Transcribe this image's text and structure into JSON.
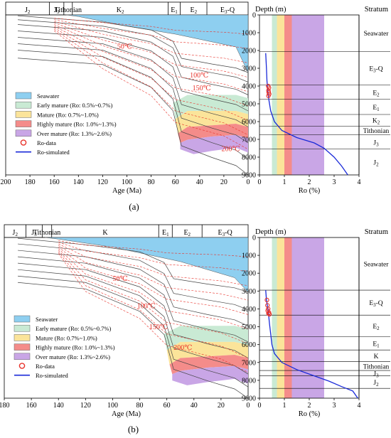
{
  "panels": [
    {
      "label": "(a)",
      "era_labels": [
        "J2",
        "J3",
        "Tithonian",
        "K2",
        "E1",
        "E2",
        "E3-Q"
      ],
      "x_ticks": [
        "200",
        "180",
        "160",
        "140",
        "120",
        "100",
        "80",
        "60",
        "40",
        "20",
        "0"
      ],
      "xlabel": "Age (Ma)",
      "isotherms": [
        "50℃",
        "100℃",
        "150℃",
        "200℃"
      ],
      "legend": [
        "Seawater",
        "Early mature (Ro: 0.5%~0.7%)",
        "Mature (Ro: 0.7%~1.0%)",
        "Highly mature (Ro: 1.0%~1.3%)",
        "Over mature (Ro: 1.3%~2.6%)",
        "Ro-data",
        "Ro-simulated"
      ],
      "depth_title": "Depth (m)",
      "depth_ticks": [
        "0",
        "1000",
        "2000",
        "3000",
        "4000",
        "5000",
        "6000",
        "7000",
        "8000",
        "9000"
      ],
      "ro_ticks": [
        "0",
        "1",
        "2",
        "3",
        "4"
      ],
      "ro_label": "Ro (%)",
      "stratum_title": "Stratum",
      "strata": [
        "Seawater",
        "E3-Q",
        "E2",
        "E1",
        "K2",
        "Tithonian",
        "J3",
        "J2"
      ]
    },
    {
      "label": "(b)",
      "era_labels": [
        "J2",
        "J3",
        "Tithonian",
        "K",
        "E1",
        "E2",
        "E3-Q"
      ],
      "x_ticks": [
        "180",
        "160",
        "140",
        "120",
        "100",
        "80",
        "60",
        "40",
        "20",
        "0"
      ],
      "xlabel": "Age (Ma)",
      "isotherms": [
        "50℃",
        "100℃",
        "150℃",
        "200℃"
      ],
      "legend": [
        "Seawater",
        "Early mature (Ro: 0.5%~0.7%)",
        "Mature (Ro: 0.7%~1.0%)",
        "Highly mature (Ro: 1.0%~1.3%)",
        "Over mature (Ro: 1.3%~2.6%)",
        "Ro-data",
        "Ro-simulated"
      ],
      "depth_title": "Depth (m)",
      "depth_ticks": [
        "0",
        "1000",
        "2000",
        "3000",
        "4000",
        "5000",
        "6000",
        "7000",
        "8000",
        "9000"
      ],
      "ro_ticks": [
        "0",
        "1",
        "2",
        "3",
        "4"
      ],
      "ro_label": "Ro (%)",
      "stratum_title": "Stratum",
      "strata": [
        "Seawater",
        "E3-Q",
        "E2",
        "E1",
        "K",
        "Tithonian",
        "J3",
        "J2"
      ]
    }
  ],
  "colors": {
    "seawater": "#8ecff0",
    "early_mature": "#c9ead4",
    "mature": "#fbe49a",
    "highly_mature": "#f48c8a",
    "over_mature": "#c9a6e6",
    "ro_data": "#e8322a",
    "ro_simulated": "#1a2ad8",
    "isotherm": "#e8322a"
  },
  "chart_data": [
    {
      "type": "area",
      "panel": "(a)",
      "xlabel": "Age (Ma)",
      "xlim": [
        200,
        0
      ],
      "ro_xlim": [
        0,
        4
      ],
      "depth_lim": [
        0,
        9000
      ],
      "ro_windows": [
        [
          0.5,
          0.7
        ],
        [
          0.7,
          1.0
        ],
        [
          1.0,
          1.3
        ],
        [
          1.3,
          2.6
        ]
      ],
      "ro_simulated": {
        "ro": [
          0.25,
          0.28,
          0.3,
          0.33,
          0.38,
          0.45,
          0.6,
          0.9,
          1.5,
          2.2,
          2.6,
          3.0,
          3.3,
          3.55
        ],
        "depth": [
          2150,
          3000,
          3700,
          4200,
          4800,
          5400,
          6000,
          6500,
          6900,
          7200,
          7500,
          8000,
          8500,
          9000
        ]
      },
      "ro_data": {
        "ro": [
          0.35,
          0.38,
          0.36,
          0.37,
          0.39,
          0.36
        ],
        "depth": [
          4000,
          4100,
          4250,
          4350,
          4450,
          4550
        ]
      },
      "strata_depth_boundaries": [
        2050,
        3950,
        4750,
        5600,
        6250,
        6750,
        7550
      ]
    },
    {
      "type": "area",
      "panel": "(b)",
      "xlabel": "Age (Ma)",
      "xlim": [
        180,
        0
      ],
      "ro_xlim": [
        0,
        4
      ],
      "depth_lim": [
        0,
        9000
      ],
      "ro_windows": [
        [
          0.5,
          0.7
        ],
        [
          0.7,
          1.0
        ],
        [
          1.0,
          1.3
        ],
        [
          1.3,
          2.6
        ]
      ],
      "ro_simulated": {
        "ro": [
          0.25,
          0.28,
          0.35,
          0.4,
          0.45,
          0.5,
          0.6,
          0.9,
          1.5,
          2.2,
          2.8,
          3.3,
          3.75,
          3.95
        ],
        "depth": [
          2950,
          3500,
          4100,
          4800,
          5400,
          6000,
          6500,
          7000,
          7400,
          7750,
          8050,
          8350,
          8600,
          9000
        ]
      },
      "ro_data": {
        "ro": [
          0.3,
          0.32,
          0.35,
          0.33,
          0.38,
          0.36,
          0.4
        ],
        "depth": [
          3500,
          3800,
          4000,
          4100,
          4200,
          4250,
          4300
        ]
      },
      "strata_depth_boundaries": [
        2950,
        4350,
        5550,
        6300,
        6950,
        7450,
        7750,
        8450
      ]
    }
  ]
}
